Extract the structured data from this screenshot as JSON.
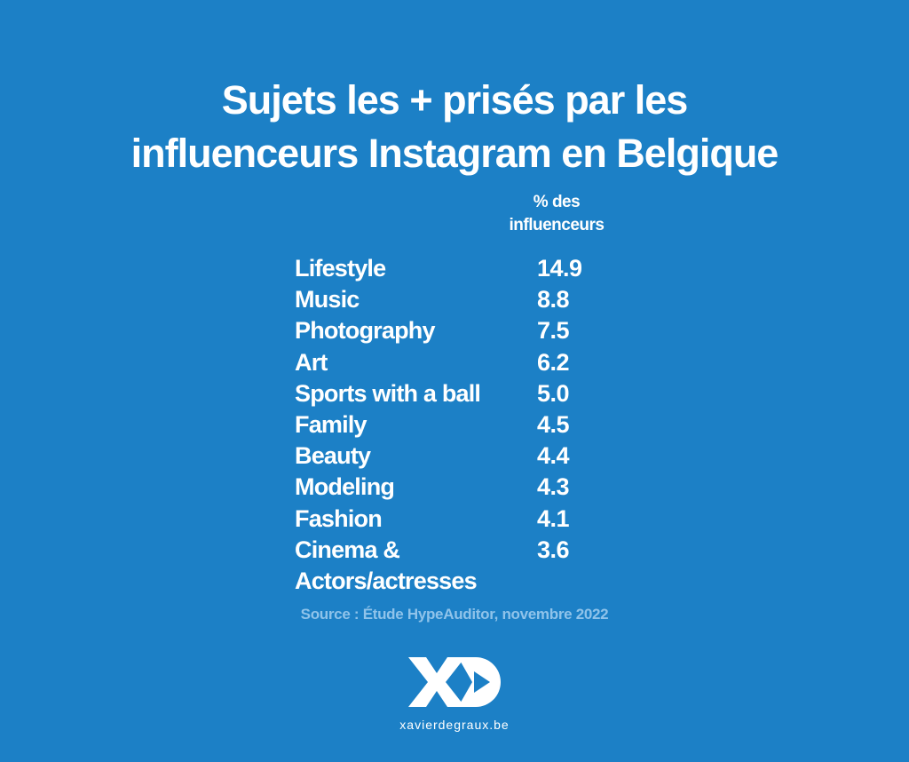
{
  "header": {
    "title_lines": [
      "Sujets les + prisés par les",
      "influenceurs Instagram en Belgique"
    ]
  },
  "table": {
    "value_header_lines": [
      "% des",
      "influenceurs"
    ],
    "rows": [
      [
        "Lifestyle",
        "14.9"
      ],
      [
        "Music",
        "8.8"
      ],
      [
        "Photography",
        "7.5"
      ],
      [
        "Art",
        "6.2"
      ],
      [
        "Sports with a ball",
        "5.0"
      ],
      [
        "Family",
        "4.5"
      ],
      [
        "Beauty",
        "4.4"
      ],
      [
        "Modeling",
        "4.3"
      ],
      [
        "Fashion",
        "4.1"
      ],
      [
        "Cinema & Actors/actresses",
        "3.6"
      ]
    ]
  },
  "source": "Source : Étude HypeAuditor, novembre 2022",
  "footer": {
    "website": "xavierdegraux.be"
  }
}
